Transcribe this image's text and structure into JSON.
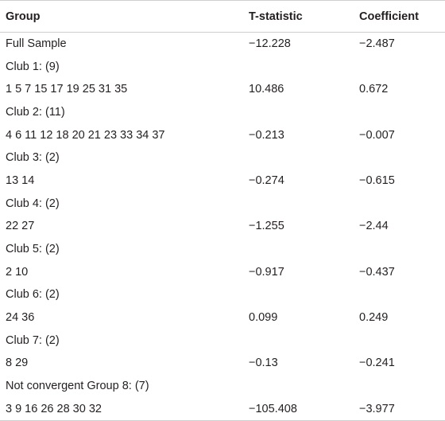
{
  "table": {
    "headers": [
      "Group",
      "T-statistic",
      "Coefficient"
    ],
    "rows": [
      {
        "group": "Full Sample",
        "t": "−12.228",
        "coef": "−2.487"
      },
      {
        "group": "Club 1: (9)",
        "t": "",
        "coef": ""
      },
      {
        "group": "1 5 7 15 17 19 25 31 35",
        "t": "10.486",
        "coef": "0.672"
      },
      {
        "group": "Club 2: (11)",
        "t": "",
        "coef": ""
      },
      {
        "group": "4 6 11 12 18 20 21 23 33 34 37",
        "t": "−0.213",
        "coef": "−0.007"
      },
      {
        "group": "Club 3: (2)",
        "t": "",
        "coef": ""
      },
      {
        "group": "13 14",
        "t": "−0.274",
        "coef": "−0.615"
      },
      {
        "group": "Club 4: (2)",
        "t": "",
        "coef": ""
      },
      {
        "group": "22 27",
        "t": "−1.255",
        "coef": "−2.44"
      },
      {
        "group": "Club 5: (2)",
        "t": "",
        "coef": ""
      },
      {
        "group": "2 10",
        "t": "−0.917",
        "coef": "−0.437"
      },
      {
        "group": "Club 6: (2)",
        "t": "",
        "coef": ""
      },
      {
        "group": "24 36",
        "t": "0.099",
        "coef": "0.249"
      },
      {
        "group": "Club 7: (2)",
        "t": "",
        "coef": ""
      },
      {
        "group": "8 29",
        "t": "−0.13",
        "coef": "−0.241"
      },
      {
        "group": "Not convergent Group 8: (7)",
        "t": "",
        "coef": ""
      },
      {
        "group": "3 9 16 26 28 30 32",
        "t": "−105.408",
        "coef": "−3.977"
      }
    ]
  }
}
